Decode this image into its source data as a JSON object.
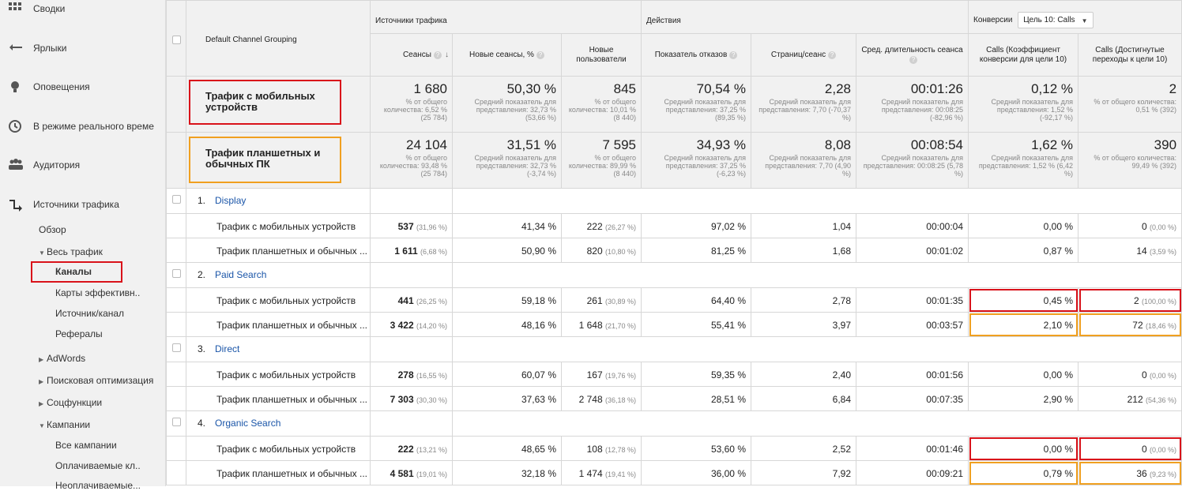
{
  "sidebar": {
    "items": [
      {
        "label": "Сводки",
        "icon": "grid-icon"
      },
      {
        "label": "Ярлыки",
        "icon": "shortcut-arrow-icon"
      },
      {
        "label": "Оповещения",
        "icon": "bulb-icon"
      },
      {
        "label": "В режиме реального време",
        "icon": "clock-icon"
      },
      {
        "label": "Аудитория",
        "icon": "people-icon"
      },
      {
        "label": "Источники трафика",
        "icon": "traffic-arrows-icon"
      }
    ],
    "sub": {
      "overview": "Обзор",
      "all_traffic": "Весь трафик",
      "channels": "Каналы",
      "treemaps": "Карты эффективн..",
      "source_medium": "Источник/канал",
      "referrals": "Рефералы",
      "adwords": "AdWords",
      "seo": "Поисковая оптимизация",
      "social": "Соцфункции",
      "campaigns": "Кампании",
      "all_campaigns": "Все кампании",
      "paid_keywords": "Оплачиваемые кл..",
      "organic_keywords": "Неоплачиваемые..."
    }
  },
  "table": {
    "dimension_header": "Default Channel Grouping",
    "groups": {
      "acquisition": "Источники трафика",
      "behavior": "Действия",
      "conversions": "Конверсии",
      "goal_select": "Цель 10: Calls"
    },
    "columns": {
      "sessions": "Сеансы",
      "new_sessions": "Новые сеансы, %",
      "new_users": "Новые пользователи",
      "bounce": "Показатель отказов",
      "pages": "Страниц/сеанс",
      "duration": "Сред. длительность сеанса",
      "conv_rate": "Calls (Коэффициент конверсии для цели 10)",
      "completions": "Calls (Достигнутые переходы к цели 10)"
    },
    "segments": [
      {
        "name": "Трафик с мобильных устройств",
        "sessions": "1 680",
        "sessions_sub": "% от общего количества: 6,52 % (25 784)",
        "new_sessions": "50,30 %",
        "new_sessions_sub": "Средний показатель для представления: 32,73 % (53,66 %)",
        "new_users": "845",
        "new_users_sub": "% от общего количества: 10,01 % (8 440)",
        "bounce": "70,54 %",
        "bounce_sub": "Средний показатель для представления: 37,25 % (89,35 %)",
        "pages": "2,28",
        "pages_sub": "Средний показатель для представления: 7,70 (-70,37 %)",
        "duration": "00:01:26",
        "duration_sub": "Средний показатель для представления: 00:08:25 (-82,96 %)",
        "conv_rate": "0,12 %",
        "conv_rate_sub": "Средний показатель для представления: 1,52 % (-92,17 %)",
        "completions": "2",
        "completions_sub": "% от общего количества: 0,51 % (392)"
      },
      {
        "name": "Трафик планшетных и обычных ПК",
        "sessions": "24 104",
        "sessions_sub": "% от общего количества: 93,48 % (25 784)",
        "new_sessions": "31,51 %",
        "new_sessions_sub": "Средний показатель для представления: 32,73 % (-3,74 %)",
        "new_users": "7 595",
        "new_users_sub": "% от общего количества: 89,99 % (8 440)",
        "bounce": "34,93 %",
        "bounce_sub": "Средний показатель для представления: 37,25 % (-6,23 %)",
        "pages": "8,08",
        "pages_sub": "Средний показатель для представления: 7,70 (4,90 %)",
        "duration": "00:08:54",
        "duration_sub": "Средний показатель для представления: 00:08:25 (5,78 %)",
        "conv_rate": "1,62 %",
        "conv_rate_sub": "Средний показатель для представления: 1,52 % (6,42 %)",
        "completions": "390",
        "completions_sub": "% от общего количества: 99,49 % (392)"
      }
    ],
    "channels": [
      {
        "index": "1.",
        "name": "Display",
        "rows": [
          {
            "name": "Трафик с мобильных устройств",
            "sessions": "537",
            "sessions_pct": "(31,96 %)",
            "new_sessions": "41,34 %",
            "new_users": "222",
            "new_users_pct": "(26,27 %)",
            "bounce": "97,02 %",
            "pages": "1,04",
            "duration": "00:00:04",
            "conv_rate": "0,00 %",
            "completions": "0",
            "completions_pct": "(0,00 %)"
          },
          {
            "name": "Трафик планшетных и обычных ...",
            "sessions": "1 611",
            "sessions_pct": "(6,68 %)",
            "new_sessions": "50,90 %",
            "new_users": "820",
            "new_users_pct": "(10,80 %)",
            "bounce": "81,25 %",
            "pages": "1,68",
            "duration": "00:01:02",
            "conv_rate": "0,87 %",
            "completions": "14",
            "completions_pct": "(3,59 %)"
          }
        ]
      },
      {
        "index": "2.",
        "name": "Paid Search",
        "rows": [
          {
            "name": "Трафик с мобильных устройств",
            "sessions": "441",
            "sessions_pct": "(26,25 %)",
            "new_sessions": "59,18 %",
            "new_users": "261",
            "new_users_pct": "(30,89 %)",
            "bounce": "64,40 %",
            "pages": "2,78",
            "duration": "00:01:35",
            "conv_rate": "0,45 %",
            "completions": "2",
            "completions_pct": "(100,00 %)"
          },
          {
            "name": "Трафик планшетных и обычных ...",
            "sessions": "3 422",
            "sessions_pct": "(14,20 %)",
            "new_sessions": "48,16 %",
            "new_users": "1 648",
            "new_users_pct": "(21,70 %)",
            "bounce": "55,41 %",
            "pages": "3,97",
            "duration": "00:03:57",
            "conv_rate": "2,10 %",
            "completions": "72",
            "completions_pct": "(18,46 %)"
          }
        ]
      },
      {
        "index": "3.",
        "name": "Direct",
        "rows": [
          {
            "name": "Трафик с мобильных устройств",
            "sessions": "278",
            "sessions_pct": "(16,55 %)",
            "new_sessions": "60,07 %",
            "new_users": "167",
            "new_users_pct": "(19,76 %)",
            "bounce": "59,35 %",
            "pages": "2,40",
            "duration": "00:01:56",
            "conv_rate": "0,00 %",
            "completions": "0",
            "completions_pct": "(0,00 %)"
          },
          {
            "name": "Трафик планшетных и обычных ...",
            "sessions": "7 303",
            "sessions_pct": "(30,30 %)",
            "new_sessions": "37,63 %",
            "new_users": "2 748",
            "new_users_pct": "(36,18 %)",
            "bounce": "28,51 %",
            "pages": "6,84",
            "duration": "00:07:35",
            "conv_rate": "2,90 %",
            "completions": "212",
            "completions_pct": "(54,36 %)"
          }
        ]
      },
      {
        "index": "4.",
        "name": "Organic Search",
        "rows": [
          {
            "name": "Трафик с мобильных устройств",
            "sessions": "222",
            "sessions_pct": "(13,21 %)",
            "new_sessions": "48,65 %",
            "new_users": "108",
            "new_users_pct": "(12,78 %)",
            "bounce": "53,60 %",
            "pages": "2,52",
            "duration": "00:01:46",
            "conv_rate": "0,00 %",
            "completions": "0",
            "completions_pct": "(0,00 %)"
          },
          {
            "name": "Трафик планшетных и обычных ...",
            "sessions": "4 581",
            "sessions_pct": "(19,01 %)",
            "new_sessions": "32,18 %",
            "new_users": "1 474",
            "new_users_pct": "(19,41 %)",
            "bounce": "36,00 %",
            "pages": "7,92",
            "duration": "00:09:21",
            "conv_rate": "0,79 %",
            "completions": "36",
            "completions_pct": "(9,23 %)"
          }
        ]
      }
    ]
  },
  "colors": {
    "highlight_red": "#d9121a",
    "highlight_orange": "#f0a020",
    "link": "#1a55a8"
  }
}
